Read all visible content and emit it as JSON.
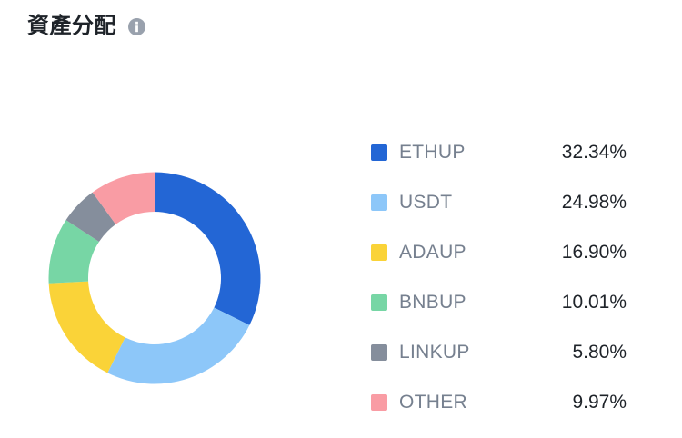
{
  "header": {
    "title": "資產分配"
  },
  "colors": {
    "background": "#FFFFFF",
    "title_text": "#1E2329",
    "legend_label": "#76808F",
    "legend_value": "#1E2329",
    "info_icon": "#99A1AD"
  },
  "chart_data": {
    "type": "pie",
    "variant": "donut",
    "title": "資產分配",
    "direction": "clockwise",
    "start_angle_deg": 0,
    "legend_position": "right",
    "segments": [
      {
        "label": "ETHUP",
        "value": 32.34,
        "display": "32.34%",
        "color": "#2366D5"
      },
      {
        "label": "USDT",
        "value": 24.98,
        "display": "24.98%",
        "color": "#8DC7F9"
      },
      {
        "label": "ADAUP",
        "value": 16.9,
        "display": "16.90%",
        "color": "#FAD338"
      },
      {
        "label": "BNBUP",
        "value": 10.01,
        "display": "10.01%",
        "color": "#77D6A5"
      },
      {
        "label": "LINKUP",
        "value": 5.8,
        "display": "5.80%",
        "color": "#858E9C"
      },
      {
        "label": "OTHER",
        "value": 9.97,
        "display": "9.97%",
        "color": "#F99CA4"
      }
    ]
  }
}
